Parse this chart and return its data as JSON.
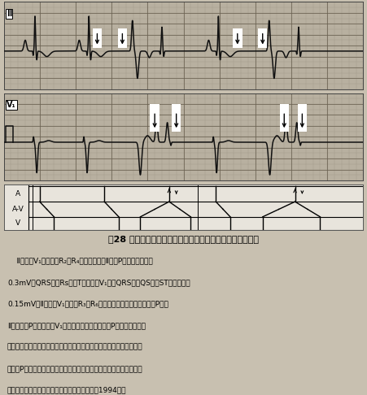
{
  "title": "图28 频发室性早搏伴室房传导引起室性反复搏动及心房回波",
  "description_lines": [
    "    Ⅱ导联、V₁导联示：R₂、R₄为穦性搞动，Ⅱ导联P波高大，振幅为",
    "0.3mV。QRS波呲Rs型，T波浅倒。V₁导联QRS波呲QS型，ST段弓背抬高",
    "0.15mV。Ⅱ导联及V₁导联的R₃及R₆均为室性早搞，其后均有逆行P波。",
    "Ⅱ导联逆行P波倒置，在V₁导联呲高尖直立。该逆行P波在房室交接处",
    "又折回前向下传激动心室，形成室性反复搞动，此反复搞动也有室房传",
    "导产生P波。心电图诊断：穦性心律、心房肥大，频发室性早搞伴室房",
    "传导引起室性反复搞动及心房回波（引自于霞，1994）。"
  ],
  "ecg_lead1_label": "Ⅱ",
  "ecg_lead2_label": "V₁",
  "ladder_labels": [
    "A",
    "A-V",
    "V"
  ],
  "ecg_bg": "#b8b0a0",
  "grid_minor_color": "#9a9080",
  "grid_major_color": "#6a6050",
  "line_color": "#111111",
  "fig_bg": "#c8c0b0",
  "text_bg": "#d8d0c0",
  "ladder_bg": "#e8e4dc"
}
